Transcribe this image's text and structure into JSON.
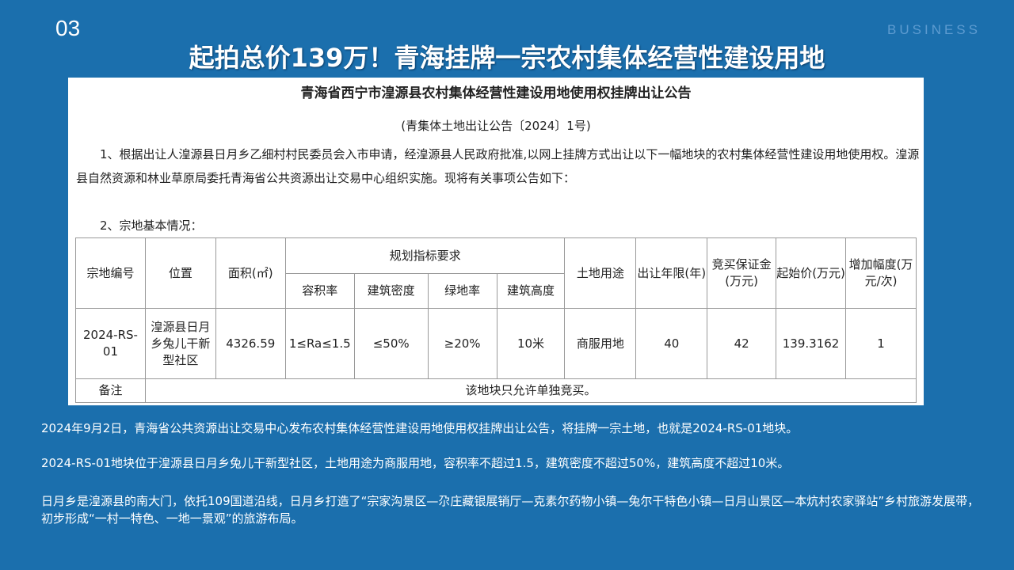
{
  "slide": {
    "number": "03",
    "tag": "BUSINESS",
    "title": "起拍总价139万！青海挂牌一宗农村集体经营性建设用地"
  },
  "doc": {
    "heading": "青海省西宁市湟源县农村集体经营性建设用地使用权挂牌出让公告",
    "subheading": "(青集体土地出让公告〔2024〕1号)",
    "para1": "　　1、根据出让人湟源县日月乡乙细村村民委员会入市申请，经湟源县人民政府批准,以网上挂牌方式出让以下一幅地块的农村集体经营性建设用地使用权。湟源县自然资源和林业草原局委托青海省公共资源出让交易中心组织实施。现将有关事项公告如下：",
    "para2": "　　2、宗地基本情况：",
    "table": {
      "h": [
        "宗地编号",
        "位置",
        "面积(㎡)",
        "规划指标要求",
        "土地用途",
        "出让年限(年)",
        "竞买保证金(万元)",
        "起始价(万元)",
        "增加幅度(万元/次)"
      ],
      "sub": [
        "容积率",
        "建筑密度",
        "绿地率",
        "建筑高度"
      ],
      "row": [
        "2024-RS-01",
        "湟源县日月乡兔儿干新型社区",
        "4326.59",
        "1≤Ra≤1.5",
        "≤50%",
        "≥20%",
        "10米",
        "商服用地",
        "40",
        "42",
        "139.3162",
        "1"
      ],
      "remark_label": "备注",
      "remark": "该地块只允许单独竞买。"
    }
  },
  "body": [
    "2024年9月2日，青海省公共资源出让交易中心发布农村集体经营性建设用地使用权挂牌出让公告，将挂牌一宗土地，也就是2024-RS-01地块。",
    "2024-RS-01地块位于湟源县日月乡兔儿干新型社区，土地用途为商服用地，容积率不超过1.5，建筑密度不超过50%，建筑高度不超过10米。",
    "日月乡是湟源县的南大门，依托109国道沿线，日月乡打造了“宗家沟景区—尕庄藏银展销厅—克素尔药物小镇—兔尔干特色小镇—日月山景区—本炕村农家驿站”乡村旅游发展带，初步形成“一村一特色、一地一景观”的旅游布局。"
  ]
}
